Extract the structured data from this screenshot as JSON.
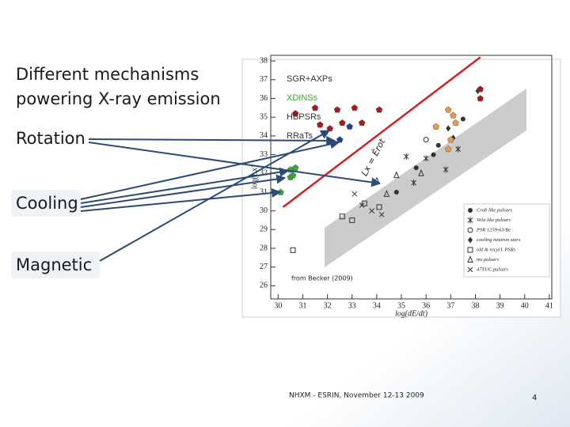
{
  "slide": {
    "heading": [
      "Different mechanisms",
      "powering X-ray emission"
    ],
    "labels": [
      "Rotation",
      "Cooling",
      "Magnetic"
    ],
    "footer": "NHXM - ESRIN, November 12-13 2009",
    "page": 4
  },
  "chart_data": {
    "type": "scatter",
    "xlabel": "log(dE/dt)",
    "ylabel": "log(Lx)",
    "source": "from Becker (2009)",
    "xlim": [
      29.7,
      41.1
    ],
    "ylim": [
      25.3,
      38.3
    ],
    "xticks": [
      30,
      31,
      32,
      33,
      34,
      35,
      36,
      37,
      38,
      39,
      40,
      41
    ],
    "yticks": [
      26,
      27,
      28,
      29,
      30,
      31,
      32,
      33,
      34,
      35,
      36,
      37,
      38
    ],
    "reference_line": {
      "label": "Lx = Ėrot",
      "color": "#d42020",
      "x": [
        30.2,
        38.2
      ],
      "y": [
        30.2,
        38.2
      ]
    },
    "groups": [
      {
        "name": "SGR+AXPs",
        "color": "#b01818",
        "x": [
          30.7,
          31.5,
          32.4,
          33.1,
          34.1,
          31.7,
          32.1,
          32.6,
          33.4,
          38.2,
          38.2
        ],
        "y": [
          35.2,
          35.5,
          35.4,
          35.5,
          35.4,
          34.6,
          34.4,
          34.7,
          34.7,
          36.5,
          36.0
        ]
      },
      {
        "name": "XDINSs",
        "color": "#3aa53a",
        "x": [
          30.5,
          30.7,
          30.5,
          30.1,
          30.6
        ],
        "y": [
          32.2,
          32.3,
          31.8,
          31.0,
          31.9
        ]
      },
      {
        "name": "HBPSRs",
        "color": "#e89a4a",
        "x": [
          36.9,
          37.1,
          36.4,
          37.0,
          36.9,
          37.2
        ],
        "y": [
          35.4,
          35.1,
          34.5,
          33.8,
          33.3,
          34.7
        ]
      },
      {
        "name": "RRaTs",
        "color": "#2040a0",
        "x": [
          32.5,
          32.9
        ],
        "y": [
          33.8,
          34.5
        ]
      }
    ],
    "series": [
      {
        "name": "Crab like pulsars",
        "marker": "circle",
        "x": [
          36.5,
          36.3,
          37.5,
          35.6,
          34.8
        ],
        "y": [
          33.5,
          33.0,
          34.9,
          32.3,
          31.0
        ]
      },
      {
        "name": "Vela like pulsars",
        "marker": "asterisk",
        "x": [
          35.2,
          36.0,
          36.8,
          35.5,
          37.3
        ],
        "y": [
          32.9,
          32.8,
          32.2,
          31.5,
          33.3
        ]
      },
      {
        "name": "PSR 1259-63/Be",
        "marker": "open-circle",
        "x": [
          36.0
        ],
        "y": [
          33.8
        ]
      },
      {
        "name": "cooling neutron stars",
        "marker": "diamond",
        "x": [
          38.1,
          36.9,
          37.1
        ],
        "y": [
          36.4,
          34.4,
          33.9
        ]
      },
      {
        "name": "old & recycl. PSRs",
        "marker": "square",
        "x": [
          30.6,
          32.6,
          33.5,
          34.1,
          33.0
        ],
        "y": [
          27.9,
          29.7,
          30.4,
          30.2,
          29.5
        ]
      },
      {
        "name": "ms pulsars",
        "marker": "triangle",
        "x": [
          34.0,
          34.8,
          35.8,
          34.4
        ],
        "y": [
          31.6,
          31.9,
          32.0,
          30.9
        ]
      },
      {
        "name": "47TUC pulsars",
        "marker": "x",
        "x": [
          33.4,
          33.8,
          34.2,
          33.1
        ],
        "y": [
          30.3,
          30.0,
          29.8,
          30.9
        ]
      }
    ]
  }
}
